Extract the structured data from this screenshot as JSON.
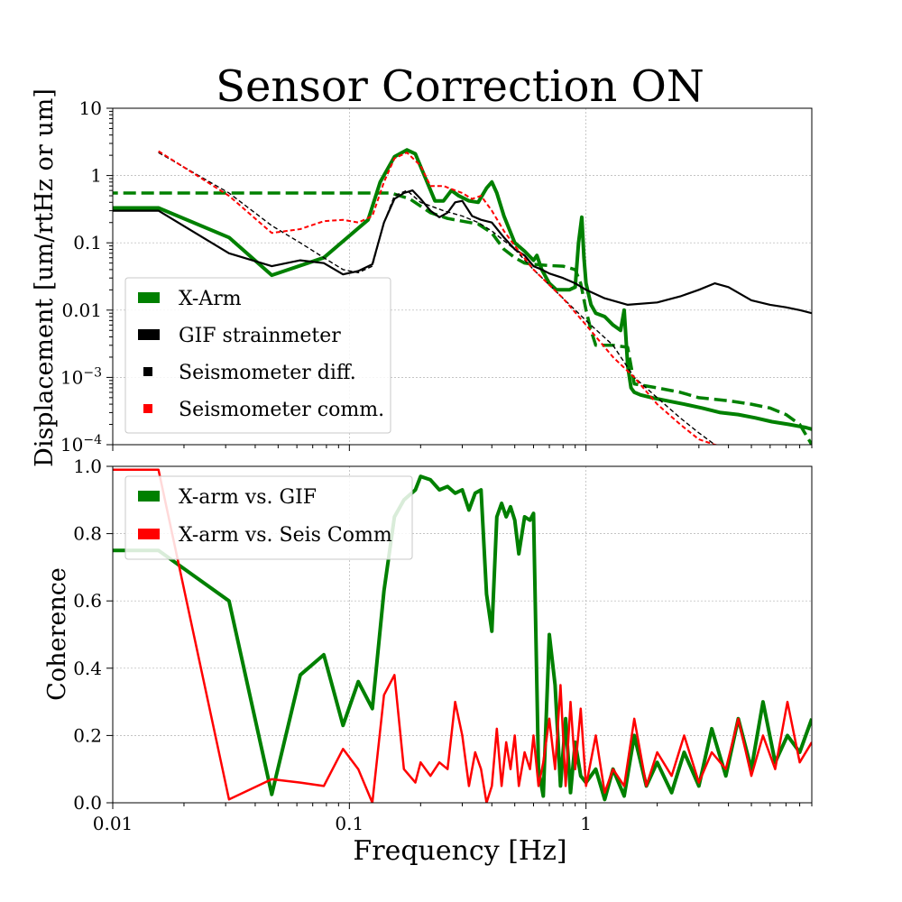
{
  "figure": {
    "title": "Sensor Correction ON",
    "ylabel_top": "Displacement [um/rtHz or um]",
    "ylabel_bottom": "Coherence",
    "xlabel": "Frequency [Hz]"
  },
  "colors": {
    "green": "#008000",
    "black": "#000000",
    "red": "#ff0000",
    "grid": "#b0b0b0"
  },
  "chart_data": [
    {
      "type": "line",
      "xscale": "log",
      "yscale": "log",
      "xlim": [
        0.01,
        9
      ],
      "ylim": [
        0.0001,
        10
      ],
      "grid": true,
      "legend_position": "lower-left",
      "xticks": [
        0.01,
        0.1,
        1
      ],
      "xtick_labels": [
        "0.01",
        "0.1",
        "1"
      ],
      "yticks": [
        10,
        1,
        0.1,
        0.01,
        0.001,
        0.0001
      ],
      "ytick_labels": [
        "10",
        "1",
        "0.1",
        "0.01",
        "10−3",
        "10−4"
      ],
      "series": [
        {
          "name": "X-Arm",
          "color": "#008000",
          "style": "solid",
          "width": 4,
          "x": [
            0.0078,
            0.0156,
            0.031,
            0.047,
            0.078,
            0.12,
            0.135,
            0.155,
            0.175,
            0.19,
            0.21,
            0.23,
            0.25,
            0.27,
            0.29,
            0.32,
            0.35,
            0.38,
            0.4,
            0.42,
            0.45,
            0.5,
            0.55,
            0.6,
            0.62,
            0.65,
            0.7,
            0.75,
            0.8,
            0.85,
            0.9,
            0.93,
            0.96,
            0.98,
            1.0,
            1.05,
            1.1,
            1.2,
            1.3,
            1.4,
            1.45,
            1.5,
            1.55,
            1.6,
            1.7,
            1.9,
            2.2,
            2.6,
            3.1,
            3.7,
            4.4,
            5.2,
            6.1,
            7.2,
            8.5,
            9.0
          ],
          "y": [
            0.33,
            0.33,
            0.12,
            0.033,
            0.06,
            0.22,
            0.8,
            1.9,
            2.4,
            2.1,
            0.9,
            0.42,
            0.42,
            0.6,
            0.5,
            0.42,
            0.4,
            0.65,
            0.8,
            0.55,
            0.25,
            0.1,
            0.075,
            0.055,
            0.065,
            0.04,
            0.025,
            0.02,
            0.02,
            0.02,
            0.022,
            0.1,
            0.24,
            0.06,
            0.025,
            0.012,
            0.009,
            0.008,
            0.006,
            0.005,
            0.01,
            0.0015,
            0.0007,
            0.0006,
            0.00055,
            0.0005,
            0.00045,
            0.0004,
            0.00035,
            0.0003,
            0.00028,
            0.00025,
            0.00022,
            0.0002,
            0.00018,
            0.00017
          ]
        },
        {
          "name": "X-Arm (dashed)",
          "color": "#008000",
          "style": "dashed",
          "width": 3.5,
          "x": [
            0.0078,
            0.015,
            0.03,
            0.06,
            0.1,
            0.15,
            0.18,
            0.22,
            0.26,
            0.3,
            0.35,
            0.4,
            0.45,
            0.5,
            0.55,
            0.6,
            0.65,
            0.7,
            0.8,
            0.9,
            0.95,
            1.0,
            1.05,
            1.1,
            1.3,
            1.5,
            1.6,
            2.0,
            2.5,
            3.0,
            4.0,
            5.0,
            6.0,
            7.0,
            8.0,
            9.0
          ],
          "y": [
            0.55,
            0.55,
            0.55,
            0.55,
            0.55,
            0.55,
            0.45,
            0.28,
            0.23,
            0.21,
            0.19,
            0.14,
            0.08,
            0.06,
            0.05,
            0.048,
            0.047,
            0.046,
            0.045,
            0.04,
            0.025,
            0.01,
            0.005,
            0.003,
            0.003,
            0.0028,
            0.0008,
            0.0007,
            0.0006,
            0.0005,
            0.00045,
            0.0004,
            0.00035,
            0.00028,
            0.0002,
            0.0001
          ]
        },
        {
          "name": "GIF strainmeter",
          "color": "#000000",
          "style": "solid",
          "width": 2.2,
          "x": [
            0.0078,
            0.0156,
            0.031,
            0.047,
            0.062,
            0.078,
            0.094,
            0.109,
            0.125,
            0.14,
            0.155,
            0.17,
            0.185,
            0.2,
            0.22,
            0.24,
            0.26,
            0.28,
            0.3,
            0.33,
            0.36,
            0.4,
            0.45,
            0.5,
            0.55,
            0.6,
            0.65,
            0.7,
            0.8,
            0.9,
            1.0,
            1.2,
            1.5,
            2.0,
            2.5,
            3.0,
            3.5,
            4.0,
            5.0,
            6.0,
            7.0,
            8.0,
            9.0
          ],
          "y": [
            0.3,
            0.3,
            0.07,
            0.045,
            0.055,
            0.05,
            0.034,
            0.038,
            0.048,
            0.2,
            0.45,
            0.55,
            0.6,
            0.45,
            0.3,
            0.24,
            0.28,
            0.4,
            0.42,
            0.25,
            0.22,
            0.2,
            0.12,
            0.08,
            0.065,
            0.045,
            0.04,
            0.035,
            0.03,
            0.025,
            0.02,
            0.015,
            0.012,
            0.013,
            0.016,
            0.02,
            0.025,
            0.022,
            0.014,
            0.012,
            0.011,
            0.01,
            0.009
          ]
        },
        {
          "name": "Seismometer diff.",
          "color": "#000000",
          "style": "dashed",
          "width": 1.4,
          "x": [
            0.0156,
            0.031,
            0.047,
            0.062,
            0.078,
            0.094,
            0.109,
            0.125,
            0.14,
            0.155,
            0.175,
            0.2,
            0.25,
            0.3,
            0.35,
            0.4,
            0.5,
            0.6,
            0.8,
            1.0,
            1.3,
            1.6,
            2.0,
            2.5,
            3.0,
            3.5,
            4.0
          ],
          "y": [
            2.2,
            0.55,
            0.18,
            0.1,
            0.06,
            0.04,
            0.036,
            0.045,
            0.2,
            0.5,
            0.6,
            0.4,
            0.3,
            0.25,
            0.2,
            0.15,
            0.08,
            0.04,
            0.015,
            0.007,
            0.003,
            0.001,
            0.0005,
            0.00025,
            0.00015,
            0.0001,
            9e-05
          ]
        },
        {
          "name": "Seismometer comm.",
          "color": "#ff0000",
          "style": "dashed",
          "width": 2,
          "x": [
            0.0156,
            0.031,
            0.047,
            0.062,
            0.078,
            0.094,
            0.109,
            0.125,
            0.14,
            0.155,
            0.175,
            0.2,
            0.22,
            0.25,
            0.28,
            0.3,
            0.33,
            0.36,
            0.4,
            0.45,
            0.5,
            0.6,
            0.8,
            1.0,
            1.3,
            1.6,
            2.0,
            2.5,
            3.0,
            3.5,
            4.0,
            5.0,
            6.0
          ],
          "y": [
            2.3,
            0.5,
            0.14,
            0.16,
            0.21,
            0.22,
            0.2,
            0.25,
            0.8,
            1.8,
            2.2,
            1.4,
            0.7,
            0.7,
            0.6,
            0.55,
            0.45,
            0.5,
            0.3,
            0.15,
            0.09,
            0.04,
            0.015,
            0.006,
            0.002,
            0.001,
            0.0004,
            0.0002,
            0.00012,
            0.0001,
            9e-05,
            8e-05,
            7e-05
          ]
        }
      ],
      "legend": [
        {
          "label": "X-Arm",
          "color": "#008000",
          "marker": "wide"
        },
        {
          "label": "GIF strainmeter",
          "color": "#000000",
          "marker": "wide"
        },
        {
          "label": "Seismometer diff.",
          "color": "#000000",
          "marker": "small"
        },
        {
          "label": "Seismometer comm.",
          "color": "#ff0000",
          "marker": "small"
        }
      ]
    },
    {
      "type": "line",
      "xscale": "log",
      "yscale": "linear",
      "xlim": [
        0.01,
        9
      ],
      "ylim": [
        0,
        1
      ],
      "grid": true,
      "legend_position": "upper-left",
      "xticks": [
        0.01,
        0.1,
        1
      ],
      "xtick_labels": [
        "0.01",
        "0.1",
        "1"
      ],
      "yticks": [
        0,
        0.2,
        0.4,
        0.6,
        0.8,
        1.0
      ],
      "ytick_labels": [
        "0.0",
        "0.2",
        "0.4",
        "0.6",
        "0.8",
        "1.0"
      ],
      "series": [
        {
          "name": "X-arm vs. GIF",
          "color": "#008000",
          "width": 4,
          "x": [
            0.0078,
            0.0156,
            0.031,
            0.047,
            0.062,
            0.078,
            0.094,
            0.109,
            0.125,
            0.14,
            0.155,
            0.17,
            0.19,
            0.2,
            0.22,
            0.24,
            0.26,
            0.28,
            0.3,
            0.32,
            0.34,
            0.36,
            0.38,
            0.4,
            0.42,
            0.44,
            0.46,
            0.48,
            0.5,
            0.52,
            0.55,
            0.58,
            0.6,
            0.63,
            0.66,
            0.7,
            0.74,
            0.78,
            0.82,
            0.86,
            0.9,
            0.95,
            1.0,
            1.1,
            1.2,
            1.3,
            1.45,
            1.6,
            1.8,
            2.0,
            2.3,
            2.6,
            3.0,
            3.4,
            3.9,
            4.4,
            5.0,
            5.6,
            6.3,
            7.1,
            8.0,
            9.0
          ],
          "y": [
            0.75,
            0.75,
            0.6,
            0.025,
            0.38,
            0.44,
            0.23,
            0.36,
            0.28,
            0.63,
            0.85,
            0.9,
            0.93,
            0.97,
            0.96,
            0.93,
            0.94,
            0.92,
            0.93,
            0.87,
            0.92,
            0.93,
            0.62,
            0.51,
            0.85,
            0.89,
            0.85,
            0.88,
            0.84,
            0.74,
            0.85,
            0.84,
            0.86,
            0.1,
            0.02,
            0.5,
            0.35,
            0.05,
            0.25,
            0.03,
            0.18,
            0.08,
            0.06,
            0.1,
            0.01,
            0.1,
            0.02,
            0.2,
            0.05,
            0.12,
            0.03,
            0.15,
            0.05,
            0.22,
            0.08,
            0.25,
            0.1,
            0.3,
            0.12,
            0.2,
            0.15,
            0.25
          ]
        },
        {
          "name": "X-arm vs. Seis Comm",
          "color": "#ff0000",
          "width": 2.5,
          "x": [
            0.0078,
            0.0156,
            0.031,
            0.047,
            0.062,
            0.078,
            0.094,
            0.109,
            0.125,
            0.14,
            0.155,
            0.17,
            0.19,
            0.2,
            0.22,
            0.24,
            0.26,
            0.28,
            0.3,
            0.32,
            0.34,
            0.36,
            0.38,
            0.4,
            0.42,
            0.44,
            0.46,
            0.48,
            0.5,
            0.52,
            0.55,
            0.58,
            0.6,
            0.63,
            0.66,
            0.7,
            0.74,
            0.78,
            0.82,
            0.86,
            0.9,
            0.95,
            1.0,
            1.1,
            1.2,
            1.3,
            1.45,
            1.6,
            1.8,
            2.0,
            2.3,
            2.6,
            3.0,
            3.4,
            3.9,
            4.4,
            5.0,
            5.6,
            6.3,
            7.1,
            8.0,
            9.0
          ],
          "y": [
            0.99,
            0.99,
            0.01,
            0.07,
            0.06,
            0.05,
            0.16,
            0.1,
            0.0,
            0.32,
            0.38,
            0.1,
            0.06,
            0.12,
            0.08,
            0.12,
            0.1,
            0.3,
            0.2,
            0.05,
            0.15,
            0.1,
            0.0,
            0.05,
            0.22,
            0.05,
            0.18,
            0.1,
            0.2,
            0.05,
            0.15,
            0.1,
            0.2,
            0.05,
            0.12,
            0.25,
            0.1,
            0.35,
            0.05,
            0.3,
            0.1,
            0.28,
            0.05,
            0.2,
            0.03,
            0.1,
            0.05,
            0.25,
            0.05,
            0.15,
            0.08,
            0.2,
            0.06,
            0.15,
            0.1,
            0.25,
            0.08,
            0.2,
            0.1,
            0.3,
            0.12,
            0.18
          ]
        }
      ],
      "legend": [
        {
          "label": "X-arm vs. GIF",
          "color": "#008000"
        },
        {
          "label": "X-arm vs. Seis Comm",
          "color": "#ff0000"
        }
      ]
    }
  ]
}
